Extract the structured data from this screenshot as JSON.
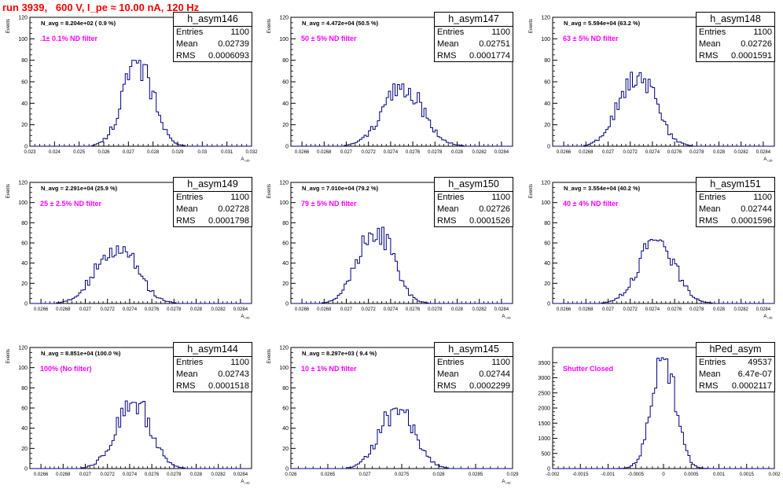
{
  "page": {
    "title": "run 3939,   600 V, I_pe ≈ 10.00 nA, 120 Hz"
  },
  "stats_labels": {
    "entries": "Entries",
    "mean": "Mean",
    "rms": "RMS"
  },
  "colors": {
    "title": "#ff0000",
    "annotation": "#ff00ff",
    "histogram": "#000080",
    "frame": "#000000"
  },
  "chart_data": [
    {
      "type": "bar",
      "name": "h_asym146",
      "ylabel": "Events",
      "xlabel": "A_uID",
      "xlim": [
        0.023,
        0.032
      ],
      "ylim": [
        0,
        120
      ],
      "xticks": [
        "0.023",
        "0.024",
        "0.025",
        "0.026",
        "0.027",
        "0.028",
        "0.029",
        "0.03",
        "0.031",
        "0.032"
      ],
      "yticks": [
        "0",
        "20",
        "40",
        "60",
        "80",
        "100",
        "120"
      ],
      "navg": "N_avg = 8.204e+02 ( 0.9 %)",
      "annotation": ".1± 0.1% ND filter",
      "stats": {
        "entries": "1100",
        "mean": "0.02739",
        "rms": "0.0006093"
      },
      "peak": 80,
      "mean_val": 0.02739,
      "rms_val": 0.0006093
    },
    {
      "type": "bar",
      "name": "h_asym147",
      "ylabel": "Events",
      "xlabel": "",
      "xlim": [
        0.0265,
        0.0285
      ],
      "ylim": [
        0,
        120
      ],
      "xticks": [
        "0.0266",
        "0.0268",
        "0.027",
        "0.0272",
        "0.0274",
        "0.0276",
        "0.0278",
        "0.028",
        "0.0282",
        "0.0284"
      ],
      "yticks": [
        "0",
        "20",
        "40",
        "60",
        "80",
        "100",
        "120"
      ],
      "navg": "N_avg = 4.472e+04 (50.5 %)",
      "annotation": "50 ± 5% ND filter",
      "stats": {
        "entries": "1100",
        "mean": "0.02751",
        "rms": "0.0001774"
      },
      "peak": 58,
      "mean_val": 0.02751,
      "rms_val": 0.0001774
    },
    {
      "type": "bar",
      "name": "h_asym148",
      "ylabel": "Events",
      "xlabel": "A_uID",
      "xlim": [
        0.0265,
        0.0285
      ],
      "ylim": [
        0,
        120
      ],
      "xticks": [
        "0.0266",
        "0.0268",
        "0.027",
        "0.0272",
        "0.0274",
        "0.0276",
        "0.0278",
        "0.028",
        "0.0282",
        "0.0284"
      ],
      "yticks": [
        "0",
        "20",
        "40",
        "60",
        "80",
        "100",
        "120"
      ],
      "navg": "N_avg = 5.594e+04 (63.2 %)",
      "annotation": "63 ± 5% ND filter",
      "stats": {
        "entries": "1100",
        "mean": "0.02726",
        "rms": "0.0001591"
      },
      "peak": 70,
      "mean_val": 0.02726,
      "rms_val": 0.0001591
    },
    {
      "type": "bar",
      "name": "h_asym149",
      "ylabel": "Events",
      "xlabel": "A_uID",
      "xlim": [
        0.0265,
        0.0285
      ],
      "ylim": [
        0,
        120
      ],
      "xticks": [
        "0.0266",
        "0.0268",
        "0.027",
        "0.0272",
        "0.0274",
        "0.0276",
        "0.0278",
        "0.028",
        "0.0282",
        "0.0284"
      ],
      "yticks": [
        "0",
        "20",
        "40",
        "60",
        "80",
        "100",
        "120"
      ],
      "navg": "N_avg = 2.291e+04 (25.9 %)",
      "annotation": "25 ± 2.5% ND filter",
      "stats": {
        "entries": "1100",
        "mean": "0.02728",
        "rms": "0.0001798"
      },
      "peak": 58,
      "mean_val": 0.02728,
      "rms_val": 0.0001798
    },
    {
      "type": "bar",
      "name": "h_asym150",
      "ylabel": "Events",
      "xlabel": "A_uID",
      "xlim": [
        0.0265,
        0.0285
      ],
      "ylim": [
        0,
        120
      ],
      "xticks": [
        "0.0266",
        "0.0268",
        "0.027",
        "0.0272",
        "0.0274",
        "0.0276",
        "0.0278",
        "0.028",
        "0.0282",
        "0.0284"
      ],
      "yticks": [
        "0",
        "20",
        "40",
        "60",
        "80",
        "100",
        "120"
      ],
      "navg": "N_avg = 7.010e+04 (79.2 %)",
      "annotation": "79 ± 5% ND filter",
      "stats": {
        "entries": "1100",
        "mean": "0.02726",
        "rms": "0.0001526"
      },
      "peak": 76,
      "mean_val": 0.02726,
      "rms_val": 0.0001526
    },
    {
      "type": "bar",
      "name": "h_asym151",
      "ylabel": "Events",
      "xlabel": "A_uID",
      "xlim": [
        0.0265,
        0.0285
      ],
      "ylim": [
        0,
        120
      ],
      "xticks": [
        "0.0266",
        "0.0268",
        "0.027",
        "0.0272",
        "0.0274",
        "0.0276",
        "0.0278",
        "0.028",
        "0.0282",
        "0.0284"
      ],
      "yticks": [
        "0",
        "20",
        "40",
        "60",
        "80",
        "100",
        "120"
      ],
      "navg": "N_avg = 3.554e+04 (40.2 %)",
      "annotation": "40 ± 4% ND filter",
      "stats": {
        "entries": "1100",
        "mean": "0.02744",
        "rms": "0.0001596"
      },
      "peak": 64,
      "mean_val": 0.02744,
      "rms_val": 0.0001596
    },
    {
      "type": "bar",
      "name": "h_asym144",
      "ylabel": "Events",
      "xlabel": "A_uID",
      "xlim": [
        0.0265,
        0.0285
      ],
      "ylim": [
        0,
        120
      ],
      "xticks": [
        "0.0266",
        "0.0268",
        "0.027",
        "0.0272",
        "0.0274",
        "0.0276",
        "0.0278",
        "0.028",
        "0.0282",
        "0.0284"
      ],
      "yticks": [
        "0",
        "20",
        "40",
        "60",
        "80",
        "100",
        "120"
      ],
      "navg": "N_avg = 8.851e+04 (100.0 %)",
      "annotation": "100% (No filter)",
      "stats": {
        "entries": "1100",
        "mean": "0.02743",
        "rms": "0.0001518"
      },
      "peak": 68,
      "mean_val": 0.02743,
      "rms_val": 0.0001518
    },
    {
      "type": "bar",
      "name": "h_asym145",
      "ylabel": "Events",
      "xlabel": "A_uID",
      "xlim": [
        0.026,
        0.029
      ],
      "ylim": [
        0,
        120
      ],
      "xticks": [
        "0.026",
        "0.0265",
        "0.027",
        "0.0275",
        "0.028",
        "0.0285",
        "0.029"
      ],
      "yticks": [
        "0",
        "20",
        "40",
        "60",
        "80",
        "100",
        "120"
      ],
      "navg": "N_avg = 8.297e+03 ( 9.4 %)",
      "annotation": "10 ± 1% ND filter",
      "stats": {
        "entries": "1100",
        "mean": "0.02744",
        "rms": "0.0002299"
      },
      "peak": 60,
      "mean_val": 0.02744,
      "rms_val": 0.0002299
    },
    {
      "type": "bar",
      "name": "hPed_asym",
      "ylabel": "",
      "xlabel": "",
      "xlim": [
        -0.002,
        0.002
      ],
      "ylim": [
        0,
        4000
      ],
      "xticks": [
        "-0.002",
        "-0.0015",
        "-0.001",
        "-0.0005",
        "0",
        "0.0005",
        "0.001",
        "0.0015",
        "0.002"
      ],
      "yticks": [
        "0",
        "500",
        "1000",
        "1500",
        "2000",
        "2500",
        "3000",
        "3500"
      ],
      "navg": "",
      "annotation": "Shutter Closed",
      "stats": {
        "entries": "49537",
        "mean": "6.47e-07",
        "rms": "0.0002117"
      },
      "peak": 3750,
      "mean_val": 6.47e-07,
      "rms_val": 0.0002117
    }
  ]
}
